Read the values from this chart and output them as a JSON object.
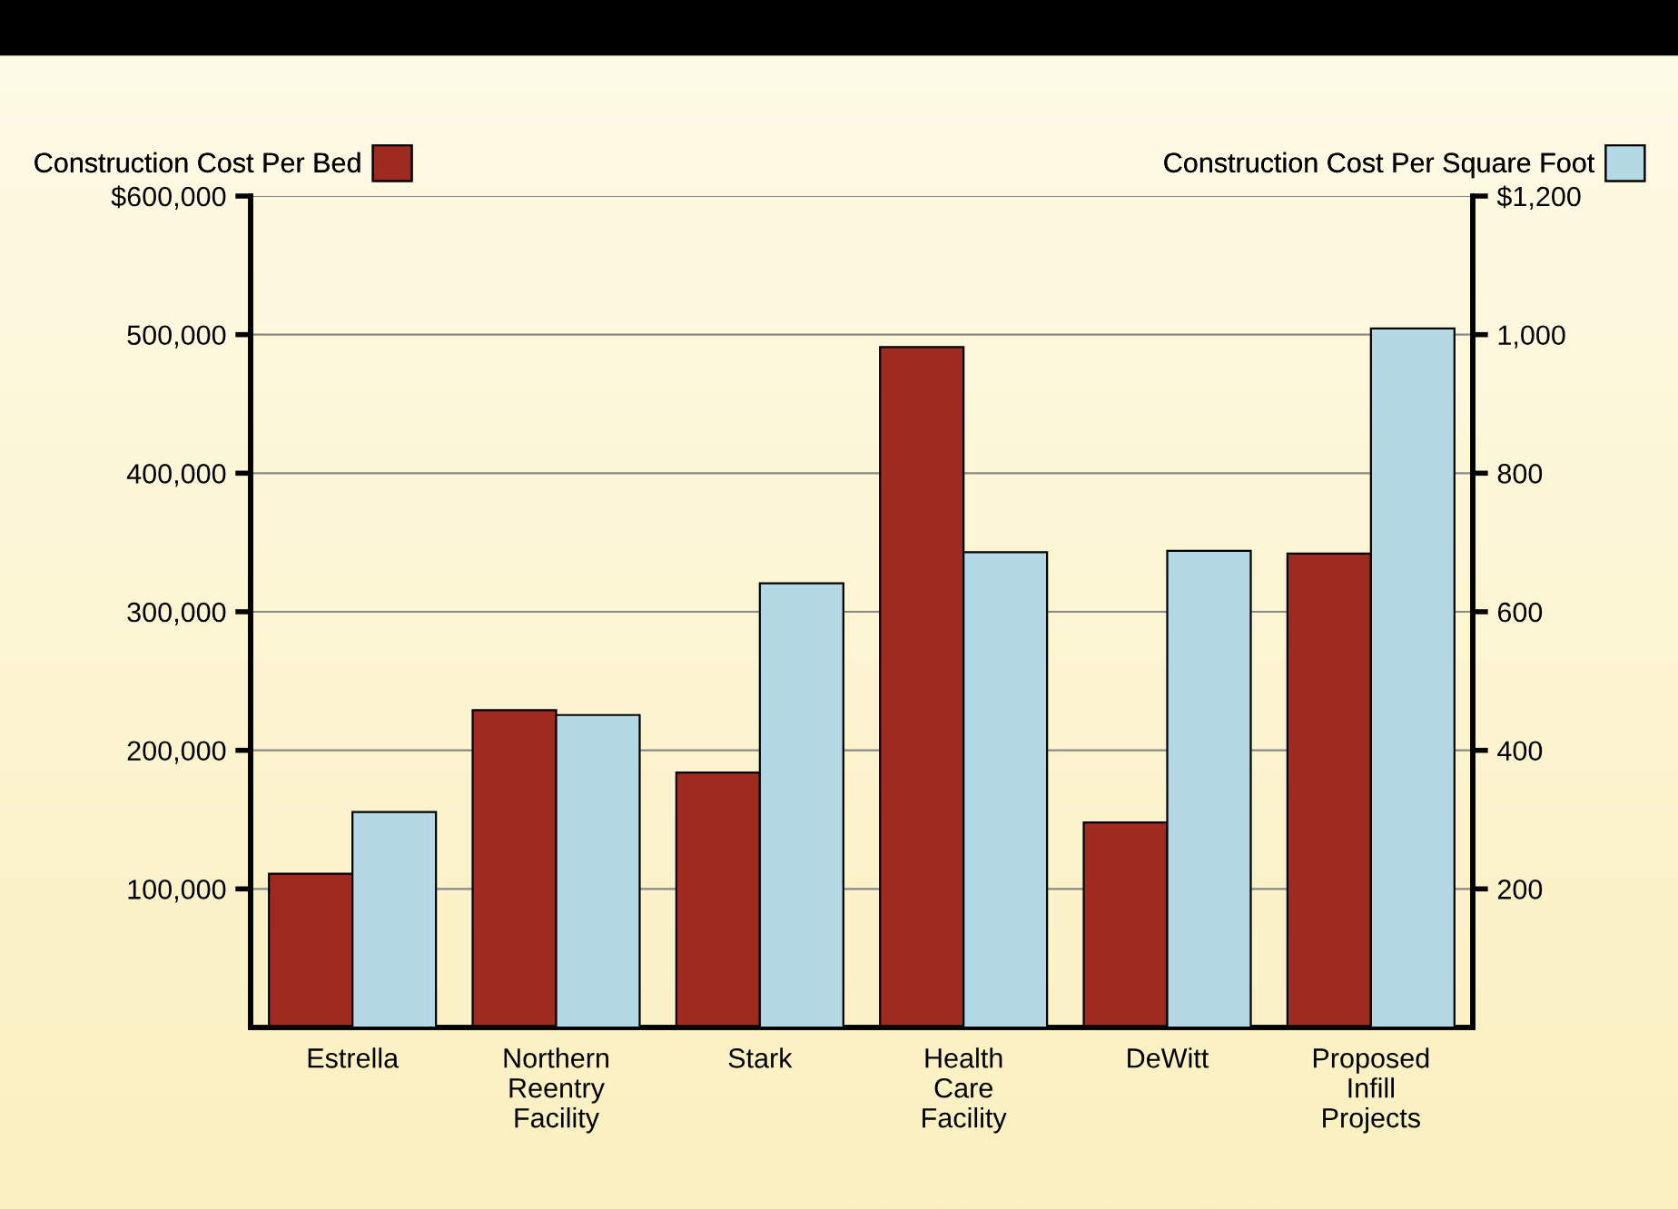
{
  "chart_data": {
    "type": "bar",
    "categories": [
      "Estrella",
      "Northern\nReentry\nFacility",
      "Stark",
      "Health\nCare\nFacility",
      "DeWitt",
      "Proposed\nInfill\nProjects"
    ],
    "series": [
      {
        "name": "Construction Cost Per Bed",
        "color": "#9e2a20",
        "values": [
          111000,
          229000,
          184000,
          491000,
          148000,
          342000
        ]
      },
      {
        "name": "Construction Cost Per Square Foot",
        "color": "#b4d9e4",
        "axis": "y2",
        "values": [
          311,
          451,
          641,
          686,
          688,
          1009
        ]
      }
    ],
    "ylim": [
      0,
      600000
    ],
    "yticks": [
      {
        "value": 100000,
        "label": "100,000"
      },
      {
        "value": 200000,
        "label": "200,000"
      },
      {
        "value": 300000,
        "label": "300,000"
      },
      {
        "value": 400000,
        "label": "400,000"
      },
      {
        "value": 500000,
        "label": "500,000"
      },
      {
        "value": 600000,
        "label": "$600,000"
      }
    ],
    "y2lim": [
      0,
      1200
    ],
    "y2ticks": [
      200,
      400,
      600,
      800,
      {
        "value": 1000,
        "label": "1,000"
      },
      {
        "value": 1200,
        "label": "$1,200"
      }
    ],
    "grid": "y",
    "legend": "top"
  }
}
